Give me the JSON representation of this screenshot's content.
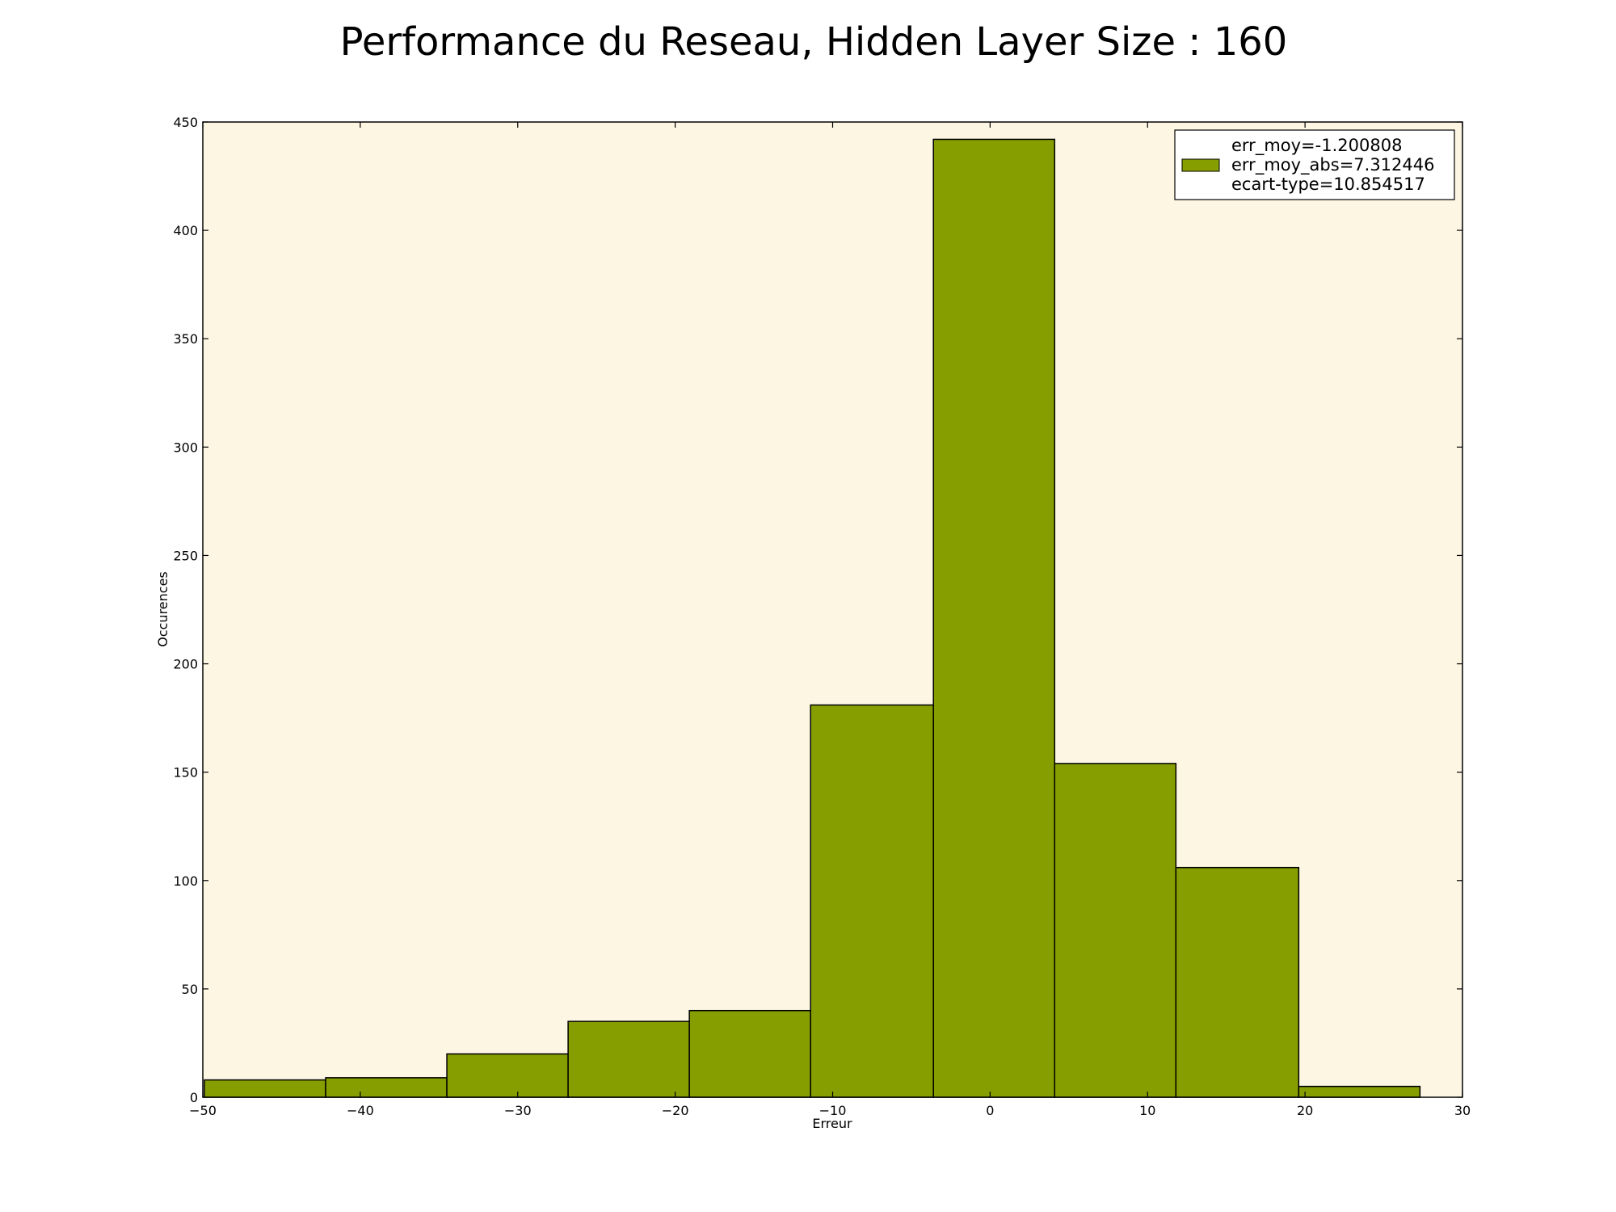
{
  "chart_data": {
    "type": "bar",
    "title": "Performance du Reseau, Hidden Layer Size : 160",
    "xlabel": "Erreur",
    "ylabel": "Occurences",
    "xlim": [
      -50,
      30
    ],
    "ylim": [
      0,
      450
    ],
    "x_ticks": [
      -50,
      -40,
      -30,
      -20,
      -10,
      0,
      10,
      20,
      30
    ],
    "x_tick_labels": [
      "−50",
      "−40",
      "−30",
      "−20",
      "−10",
      "0",
      "10",
      "20",
      "30"
    ],
    "y_ticks": [
      0,
      50,
      100,
      150,
      200,
      250,
      300,
      350,
      400,
      450
    ],
    "y_tick_labels": [
      "0",
      "50",
      "100",
      "150",
      "200",
      "250",
      "300",
      "350",
      "400",
      "450"
    ],
    "bins": [
      {
        "start": -49.9,
        "end": -42.2,
        "value": 8
      },
      {
        "start": -42.2,
        "end": -34.5,
        "value": 9
      },
      {
        "start": -34.5,
        "end": -26.8,
        "value": 20
      },
      {
        "start": -26.8,
        "end": -19.1,
        "value": 35
      },
      {
        "start": -19.1,
        "end": -11.4,
        "value": 40
      },
      {
        "start": -11.4,
        "end": -3.6,
        "value": 181
      },
      {
        "start": -3.6,
        "end": 4.1,
        "value": 442
      },
      {
        "start": 4.1,
        "end": 11.8,
        "value": 154
      },
      {
        "start": 11.8,
        "end": 19.6,
        "value": 106
      },
      {
        "start": 19.6,
        "end": 27.3,
        "value": 5
      }
    ],
    "legend": {
      "placement": "top-right",
      "entries": [
        "err_moy=-1.200808",
        "err_moy_abs=7.312446",
        "ecart-type=10.854517"
      ]
    },
    "grid": false,
    "colors": {
      "bar_fill": "#879e00",
      "bar_edge": "#000000",
      "plot_background": "#fdf6e3",
      "figure_background": "#ffffff"
    }
  }
}
